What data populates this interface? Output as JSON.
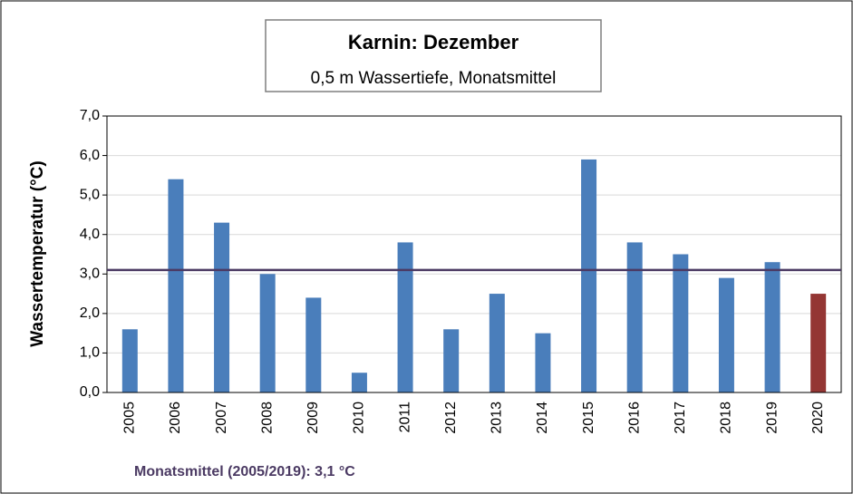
{
  "chart_data": {
    "type": "bar",
    "title": "Karnin: Dezember",
    "subtitle": "0,5 m Wassertiefe, Monatsmittel",
    "ylabel": "Wassertemperatur (°C)",
    "categories": [
      "2005",
      "2006",
      "2007",
      "2008",
      "2009",
      "2010",
      "2011",
      "2012",
      "2013",
      "2014",
      "2015",
      "2016",
      "2017",
      "2018",
      "2019",
      "2020"
    ],
    "values": [
      1.6,
      5.4,
      4.3,
      3.0,
      2.4,
      0.5,
      3.8,
      1.6,
      2.5,
      1.5,
      5.9,
      3.8,
      3.5,
      2.9,
      3.3,
      2.5
    ],
    "colors": [
      "#4a7ebb",
      "#4a7ebb",
      "#4a7ebb",
      "#4a7ebb",
      "#4a7ebb",
      "#4a7ebb",
      "#4a7ebb",
      "#4a7ebb",
      "#4a7ebb",
      "#4a7ebb",
      "#4a7ebb",
      "#4a7ebb",
      "#4a7ebb",
      "#4a7ebb",
      "#4a7ebb",
      "#943634"
    ],
    "ylim": [
      0,
      7
    ],
    "yticks": [
      {
        "value": 0,
        "label": "0,0"
      },
      {
        "value": 1,
        "label": "1,0"
      },
      {
        "value": 2,
        "label": "2,0"
      },
      {
        "value": 3,
        "label": "3,0"
      },
      {
        "value": 4,
        "label": "4,0"
      },
      {
        "value": 5,
        "label": "5,0"
      },
      {
        "value": 6,
        "label": "6,0"
      },
      {
        "value": 7,
        "label": "7,0"
      }
    ],
    "grid": true,
    "reference_line": {
      "value": 3.1,
      "label": "Monatsmittel (2005/2019): 3,1 °C",
      "color": "#4b3a63"
    }
  }
}
